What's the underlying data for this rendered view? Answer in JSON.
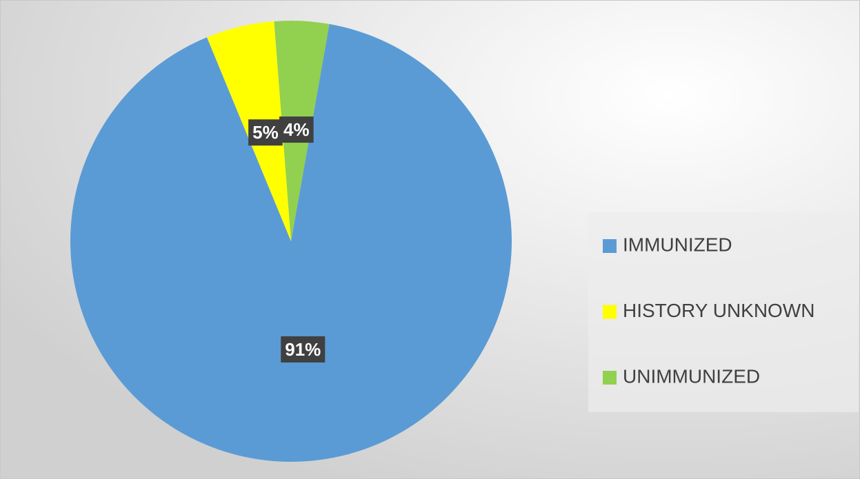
{
  "chart_data": {
    "type": "pie",
    "categories": [
      "IMMUNIZED",
      "HISTORY UNKNOWN",
      "UNIMMUNIZED"
    ],
    "values": [
      91,
      5,
      4
    ],
    "value_labels": [
      "91%",
      "5%",
      "4%"
    ],
    "colors": [
      "#5b9bd5",
      "#ffff00",
      "#92d050"
    ],
    "start_angle": 10,
    "legend": "right"
  }
}
